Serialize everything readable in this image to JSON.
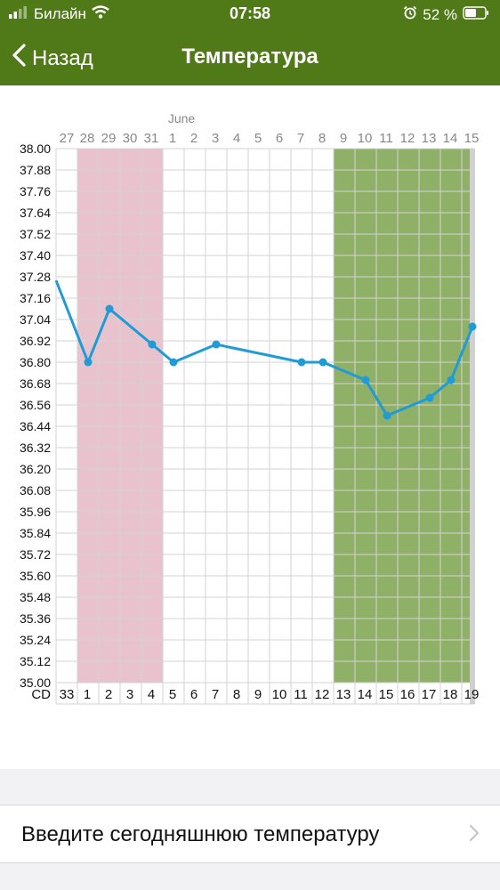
{
  "status": {
    "carrier": "Билайн",
    "time": "07:58",
    "battery": "52 %",
    "icons": [
      "signal-icon",
      "wifi-icon",
      "alarm-icon",
      "battery-icon"
    ]
  },
  "nav": {
    "back_label": "Назад",
    "title": "Температура"
  },
  "chart_data": {
    "type": "line",
    "month_label": "June",
    "date_labels": [
      "27",
      "28",
      "29",
      "30",
      "31",
      "1",
      "2",
      "3",
      "4",
      "5",
      "6",
      "7",
      "8",
      "9",
      "10",
      "11",
      "12",
      "13",
      "14",
      "15"
    ],
    "cd_label": "CD",
    "cd_labels": [
      "33",
      "1",
      "2",
      "3",
      "4",
      "5",
      "6",
      "7",
      "8",
      "9",
      "10",
      "11",
      "12",
      "13",
      "14",
      "15",
      "16",
      "17",
      "18",
      "19"
    ],
    "ylim": [
      35.0,
      38.0
    ],
    "y_ticks": [
      "38.00",
      "37.88",
      "37.76",
      "37.64",
      "37.52",
      "37.40",
      "37.28",
      "37.16",
      "37.04",
      "36.92",
      "36.80",
      "36.68",
      "36.56",
      "36.44",
      "36.32",
      "36.20",
      "36.08",
      "35.96",
      "35.84",
      "35.72",
      "35.60",
      "35.48",
      "35.36",
      "35.24",
      "35.12",
      "35.00"
    ],
    "series": [
      {
        "points": [
          {
            "cd": "1",
            "value": 36.8
          },
          {
            "cd": "2",
            "value": 37.1
          },
          {
            "cd": "4",
            "value": 36.9
          },
          {
            "cd": "5",
            "value": 36.8
          },
          {
            "cd": "7",
            "value": 36.9
          },
          {
            "cd": "11",
            "value": 36.8
          },
          {
            "cd": "12",
            "value": 36.8
          },
          {
            "cd": "14",
            "value": 36.7
          },
          {
            "cd": "15",
            "value": 36.5
          },
          {
            "cd": "17",
            "value": 36.6
          },
          {
            "cd": "18",
            "value": 36.7
          },
          {
            "cd": "19",
            "value": 37.0
          }
        ],
        "previous_value": 37.26
      }
    ],
    "period_range_cd": [
      "1",
      "4"
    ],
    "fertile_range_cd": [
      "13",
      "19"
    ],
    "today_cd": "19",
    "colors": {
      "line": "#1f9bd6",
      "period": "#e8c3cd",
      "fertile": "#8fb067",
      "grid": "#d3d3d3",
      "today": "#d0d0d0"
    }
  },
  "entry": {
    "label": "Введите сегодняшнюю температуру"
  }
}
